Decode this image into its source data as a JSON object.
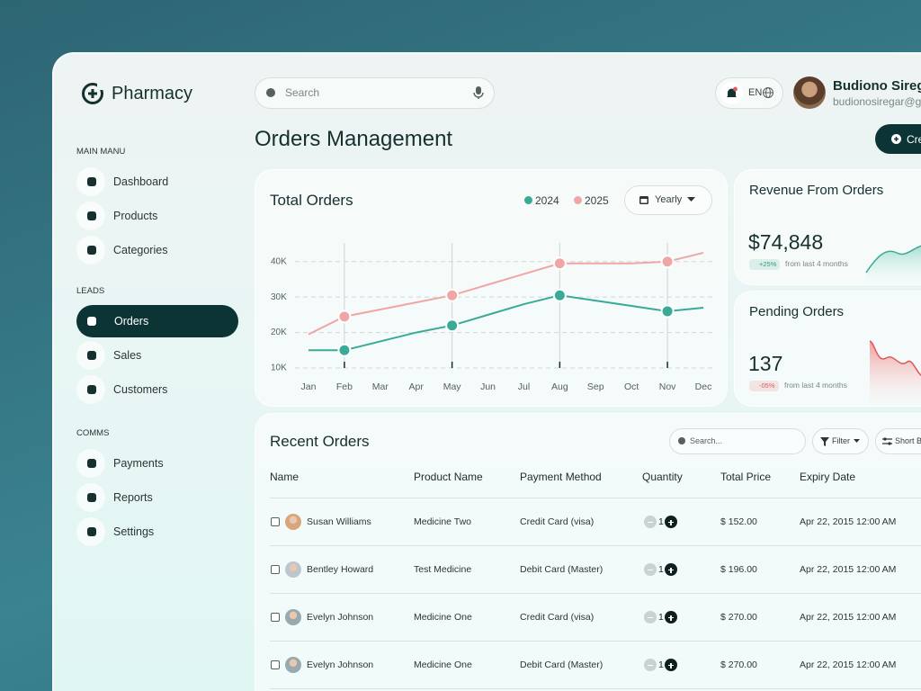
{
  "sidebar": {
    "brand": "Pharmacy",
    "sections": [
      {
        "title": "MAIN MANU",
        "items": [
          {
            "label": "Dashboard",
            "active": false
          },
          {
            "label": "Products",
            "active": false
          },
          {
            "label": "Categories",
            "active": false
          }
        ]
      },
      {
        "title": "LEADS",
        "items": [
          {
            "label": "Orders",
            "active": true
          },
          {
            "label": "Sales",
            "active": false
          },
          {
            "label": "Customers",
            "active": false
          }
        ]
      },
      {
        "title": "COMMS",
        "items": [
          {
            "label": "Payments",
            "active": false
          },
          {
            "label": "Reports",
            "active": false
          },
          {
            "label": "Settings",
            "active": false
          }
        ]
      }
    ]
  },
  "header": {
    "search_placeholder": "Search",
    "language": "EN",
    "user_name": "Budiono Siregar",
    "user_email": "budionosiregar@gmail.com",
    "page_title": "Orders Management",
    "create_button": "Create Order"
  },
  "chart_data": {
    "type": "line",
    "title": "Total Orders",
    "period": "Yearly",
    "categories": [
      "Jan",
      "Feb",
      "Mar",
      "Apr",
      "May",
      "Jun",
      "Jul",
      "Aug",
      "Sep",
      "Oct",
      "Nov",
      "Dec"
    ],
    "series": [
      {
        "name": "2024",
        "color": "#3aaa97",
        "values": [
          15000,
          15000,
          17500,
          20000,
          22000,
          25000,
          28000,
          30500,
          29000,
          27500,
          26000,
          27000
        ]
      },
      {
        "name": "2025",
        "color": "#f0a6a6",
        "values": [
          19500,
          24500,
          26500,
          28500,
          30500,
          33500,
          36500,
          39500,
          39500,
          39500,
          40000,
          42500
        ]
      }
    ],
    "marker_indices": [
      1,
      4,
      7,
      10
    ],
    "ylim": [
      10000,
      44000
    ],
    "yticks": [
      {
        "value": 10000,
        "label": "10K"
      },
      {
        "value": 20000,
        "label": "20K"
      },
      {
        "value": 30000,
        "label": "30K"
      },
      {
        "value": 40000,
        "label": "40K"
      }
    ],
    "grid": true
  },
  "stats": [
    {
      "title": "Revenue From Orders",
      "value": "$74,848",
      "change": "+25%",
      "note": "from last 4 months",
      "color": "#2f9e7e"
    },
    {
      "title": "Pending Orders",
      "value": "137",
      "change": "-05%",
      "note": "from last 4 months",
      "color": "#e05a5a"
    }
  ],
  "table": {
    "title": "Recent Orders",
    "search_placeholder": "Search...",
    "filter": "Filter",
    "sort": "Short By",
    "columns": [
      "Name",
      "Product Name",
      "Payment Method",
      "Quantity",
      "Total Price",
      "Expiry Date"
    ],
    "rows": [
      [
        "Susan Williams",
        "Medicine Two",
        "Credit Card (visa)",
        1,
        "$ 152.00",
        "Apr 22, 2015 12:00 AM"
      ],
      [
        "Bentley Howard",
        "Test Medicine",
        "Debit Card (Master)",
        1,
        "$ 196.00",
        "Apr 22, 2015 12:00 AM"
      ],
      [
        "Evelyn Johnson",
        "Medicine One",
        "Credit Card (visa)",
        1,
        "$ 270.00",
        "Apr 22, 2015 12:00 AM"
      ],
      [
        "Evelyn Johnson",
        "Medicine One",
        "Debit Card (Master)",
        1,
        "$ 270.00",
        "Apr 22, 2015 12:00 AM"
      ]
    ]
  }
}
